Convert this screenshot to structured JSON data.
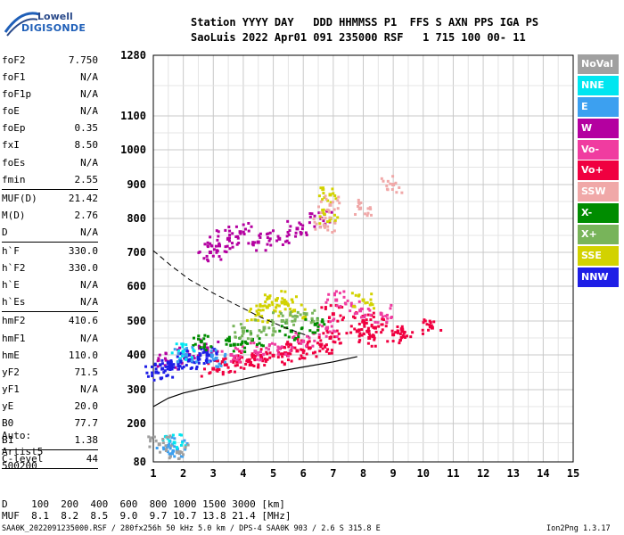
{
  "logo": {
    "brand_top": "Lowell",
    "brand_bottom": "DIGISONDE"
  },
  "header": {
    "line1": "Station YYYY DAY   DDD HHMMSS P1  FFS S AXN PPS IGA PS",
    "line2": "SaoLuis 2022 Apr01 091 235000 RSF   1 715 100 00- 11"
  },
  "params_groups": [
    [
      {
        "label": "foF2",
        "value": "7.750"
      },
      {
        "label": "foF1",
        "value": "N/A"
      },
      {
        "label": "foF1p",
        "value": "N/A"
      },
      {
        "label": "foE",
        "value": "N/A"
      },
      {
        "label": "foEp",
        "value": "0.35"
      },
      {
        "label": "fxI",
        "value": "8.50"
      },
      {
        "label": "foEs",
        "value": "N/A"
      },
      {
        "label": "fmin",
        "value": "2.55"
      }
    ],
    [
      {
        "label": "MUF(D)",
        "value": "21.42"
      },
      {
        "label": "M(D)",
        "value": "2.76"
      },
      {
        "label": "D",
        "value": "N/A"
      }
    ],
    [
      {
        "label": "h`F",
        "value": "330.0"
      },
      {
        "label": "h`F2",
        "value": "330.0"
      },
      {
        "label": "h`E",
        "value": "N/A"
      },
      {
        "label": "h`Es",
        "value": "N/A"
      }
    ],
    [
      {
        "label": "hmF2",
        "value": "410.6"
      },
      {
        "label": "hmF1",
        "value": "N/A"
      },
      {
        "label": "hmE",
        "value": "110.0"
      },
      {
        "label": "yF2",
        "value": "71.5"
      },
      {
        "label": "yF1",
        "value": "N/A"
      },
      {
        "label": "yE",
        "value": "20.0"
      },
      {
        "label": "B0",
        "value": "77.7"
      },
      {
        "label": "B1",
        "value": "1.38"
      }
    ],
    [
      {
        "label": "C-level",
        "value": "44"
      }
    ]
  ],
  "auto": {
    "line1": "Auto:",
    "line2": "Artist5",
    "line3": "500200"
  },
  "legend": [
    {
      "label": "NoVal",
      "color": "#a0a0a0"
    },
    {
      "label": "NNE",
      "color": "#00e6f0"
    },
    {
      "label": "E",
      "color": "#3ca0f0"
    },
    {
      "label": "W",
      "color": "#b400a0"
    },
    {
      "label": "Vo-",
      "color": "#f03ca0"
    },
    {
      "label": "Vo+",
      "color": "#f00040"
    },
    {
      "label": "SSW",
      "color": "#f0a8a8"
    },
    {
      "label": "X-",
      "color": "#008c00"
    },
    {
      "label": "X+",
      "color": "#78b45a"
    },
    {
      "label": "SSE",
      "color": "#d2d200"
    },
    {
      "label": "NNW",
      "color": "#1e1ee6"
    }
  ],
  "bottom": {
    "d_line": "D    100  200  400  600  800 1000 1500 3000 [km]",
    "muf_line": "MUF  8.1  8.2  8.5  9.0  9.7 10.7 13.8 21.4 [MHz]"
  },
  "footer": {
    "left": "SAA0K_2022091235000.RSF / 280fx256h 50 kHz 5.0 km / DPS-4 SAA0K 903 / 2.6 S 315.8 E",
    "right": "Ion2Png 1.3.17"
  },
  "chart_data": {
    "type": "scatter",
    "title": "",
    "xlabel": "",
    "ylabel": "",
    "xlim": [
      1,
      15
    ],
    "ylim": [
      80,
      1280
    ],
    "x_ticks": [
      1,
      2,
      3,
      4,
      5,
      6,
      7,
      8,
      9,
      10,
      11,
      12,
      13,
      14,
      15
    ],
    "y_ticks": [
      80,
      200,
      300,
      400,
      500,
      600,
      700,
      800,
      900,
      1000,
      1100,
      1280
    ],
    "grid": true,
    "series": [
      {
        "color": "#f00040",
        "points": [
          [
            3.0,
            360
          ],
          [
            3.4,
            372
          ],
          [
            3.8,
            380
          ],
          [
            4.2,
            385
          ],
          [
            4.6,
            392
          ],
          [
            5.0,
            398
          ],
          [
            5.4,
            405
          ],
          [
            5.8,
            412
          ],
          [
            6.2,
            420
          ],
          [
            6.6,
            430
          ],
          [
            6.9,
            450
          ],
          [
            7.0,
            520
          ],
          [
            7.8,
            470
          ],
          [
            8.0,
            500
          ],
          [
            8.2,
            450
          ],
          [
            8.4,
            480
          ],
          [
            9.0,
            460
          ],
          [
            9.3,
            470
          ],
          [
            10.3,
            480
          ]
        ]
      },
      {
        "color": "#f03ca0",
        "points": [
          [
            3.6,
            400
          ],
          [
            4.4,
            410
          ],
          [
            5.2,
            420
          ],
          [
            6.0,
            440
          ],
          [
            6.8,
            480
          ],
          [
            7.1,
            560
          ],
          [
            7.9,
            530
          ],
          [
            8.6,
            520
          ]
        ]
      },
      {
        "color": "#b400a0",
        "points": [
          [
            1.5,
            380
          ],
          [
            2.2,
            400
          ],
          [
            2.8,
            420
          ],
          [
            3.2,
            720
          ],
          [
            3.5,
            740
          ],
          [
            3.9,
            760
          ],
          [
            4.5,
            730
          ],
          [
            5.2,
            740
          ],
          [
            5.8,
            770
          ],
          [
            6.6,
            800
          ],
          [
            2.9,
            700
          ]
        ]
      },
      {
        "color": "#1e1ee6",
        "points": [
          [
            1.1,
            350
          ],
          [
            1.3,
            360
          ],
          [
            1.6,
            370
          ],
          [
            1.9,
            380
          ],
          [
            2.2,
            385
          ],
          [
            2.5,
            392
          ],
          [
            2.8,
            400
          ]
        ]
      },
      {
        "color": "#d2d200",
        "points": [
          [
            4.5,
            520
          ],
          [
            4.8,
            540
          ],
          [
            5.1,
            560
          ],
          [
            5.4,
            550
          ],
          [
            5.7,
            530
          ],
          [
            6.9,
            800
          ],
          [
            6.9,
            870
          ],
          [
            8.0,
            560
          ]
        ]
      },
      {
        "color": "#008c00",
        "points": [
          [
            3.7,
            430
          ],
          [
            4.3,
            445
          ],
          [
            5.6,
            470
          ],
          [
            6.4,
            490
          ],
          [
            2.6,
            440
          ]
        ]
      },
      {
        "color": "#78b45a",
        "points": [
          [
            4.0,
            470
          ],
          [
            4.7,
            480
          ],
          [
            5.3,
            500
          ],
          [
            6.1,
            520
          ]
        ]
      },
      {
        "color": "#f0a8a8",
        "points": [
          [
            6.7,
            780
          ],
          [
            6.9,
            840
          ],
          [
            9.0,
            900
          ],
          [
            7.9,
            830
          ]
        ]
      },
      {
        "color": "#3ca0f0",
        "points": [
          [
            1.5,
            130
          ],
          [
            1.8,
            120
          ],
          [
            2.1,
            400
          ],
          [
            3.1,
            390
          ]
        ]
      },
      {
        "color": "#00e6f0",
        "points": [
          [
            1.7,
            140
          ],
          [
            2.0,
            410
          ]
        ]
      },
      {
        "color": "#a0a0a0",
        "points": [
          [
            1.2,
            135
          ],
          [
            1.8,
            110
          ]
        ]
      }
    ],
    "profile_curve": {
      "color": "#000000",
      "points": [
        [
          1,
          250
        ],
        [
          1.5,
          275
        ],
        [
          2,
          290
        ],
        [
          3,
          310
        ],
        [
          4,
          330
        ],
        [
          5,
          350
        ],
        [
          6,
          365
        ],
        [
          7,
          380
        ],
        [
          7.8,
          395
        ]
      ]
    },
    "dashed_curve": {
      "color": "#000000",
      "points": [
        [
          1,
          705
        ],
        [
          1.6,
          660
        ],
        [
          2.2,
          620
        ],
        [
          3,
          580
        ],
        [
          3.8,
          545
        ],
        [
          4.6,
          510
        ],
        [
          5.4,
          480
        ],
        [
          6.2,
          455
        ]
      ]
    }
  }
}
